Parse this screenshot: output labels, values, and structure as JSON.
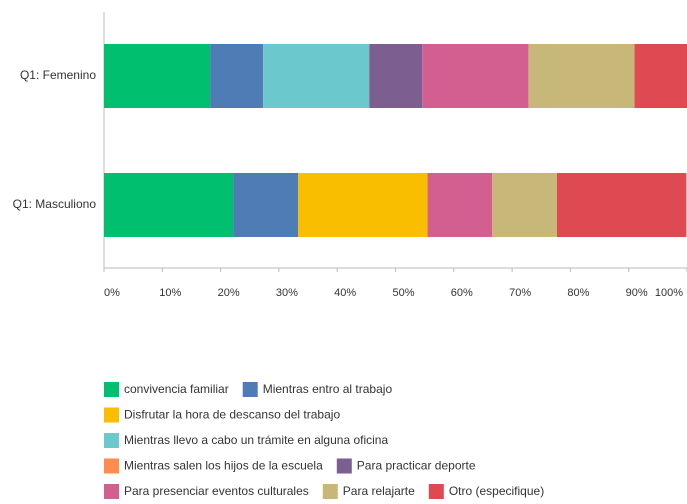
{
  "chart_data": {
    "type": "stacked_barh",
    "categories": [
      "Q1: Femenino",
      "Q1: Masculiono"
    ],
    "series": [
      {
        "name": "convivencia familiar",
        "color": "#00bf6f",
        "values": [
          18.2,
          22.2
        ]
      },
      {
        "name": "Mientras entro al trabajo",
        "color": "#507cb6",
        "values": [
          9.1,
          11.1
        ]
      },
      {
        "name": "Disfrutar la hora de descanso del trabajo",
        "color": "#f9be00",
        "values": [
          0,
          22.2
        ]
      },
      {
        "name": "Mientras llevo a cabo un trámite en alguna oficina",
        "color": "#6bc8cd",
        "values": [
          18.2,
          0
        ]
      },
      {
        "name": "Mientras salen los hijos de la escuela",
        "color": "#ff8b4f",
        "values": [
          0,
          0
        ]
      },
      {
        "name": "Para practicar deporte",
        "color": "#7d5e90",
        "values": [
          9.1,
          0
        ]
      },
      {
        "name": "Para presenciar eventos culturales",
        "color": "#d25f90",
        "values": [
          18.2,
          11.1
        ]
      },
      {
        "name": "Para relajarte",
        "color": "#c7b879",
        "values": [
          18.2,
          11.1
        ]
      },
      {
        "name": "Otro (especifique)",
        "color": "#df4952",
        "values": [
          9.1,
          22.2
        ]
      }
    ],
    "xlim": [
      0,
      100
    ],
    "xticks": [
      {
        "value": 0,
        "label": "0%"
      },
      {
        "value": 10,
        "label": "10%"
      },
      {
        "value": 20,
        "label": "20%"
      },
      {
        "value": 30,
        "label": "30%"
      },
      {
        "value": 40,
        "label": "40%"
      },
      {
        "value": 50,
        "label": "50%"
      },
      {
        "value": 60,
        "label": "60%"
      },
      {
        "value": 70,
        "label": "70%"
      },
      {
        "value": 80,
        "label": "80%"
      },
      {
        "value": 90,
        "label": "90%"
      },
      {
        "value": 100,
        "label": "100%"
      }
    ]
  }
}
